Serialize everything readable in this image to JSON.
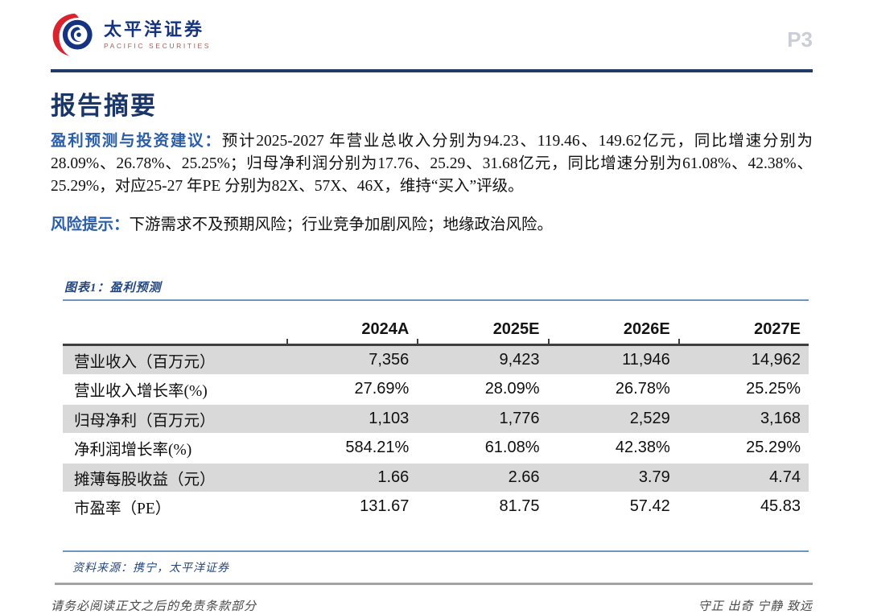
{
  "header": {
    "brand_cn": "太平洋证券",
    "brand_en": "PACIFIC SECURITIES",
    "page_number": "P3"
  },
  "title": "报告摘要",
  "summary": {
    "lead": "盈利预测与投资建议：",
    "body": "预计2025-2027 年营业总收入分别为94.23、119.46、149.62亿元，同比增速分别为28.09%、26.78%、25.25%；归母净利润分别为17.76、25.29、31.68亿元，同比增速分别为61.08%、42.38%、25.29%，对应25-27 年PE 分别为82X、57X、46X，维持“买入”评级。"
  },
  "risk": {
    "lead": "风险提示：",
    "body": "下游需求不及预期风险；行业竞争加剧风险；地缘政治风险。"
  },
  "figure": {
    "caption": "图表1：盈利预测",
    "source": "资料来源：携宁，太平洋证券"
  },
  "chart_data": {
    "type": "table",
    "title": "盈利预测",
    "columns": [
      "",
      "2024A",
      "2025E",
      "2026E",
      "2027E"
    ],
    "rows": [
      {
        "label": "营业收入（百万元）",
        "values": [
          "7,356",
          "9,423",
          "11,946",
          "14,962"
        ]
      },
      {
        "label": "营业收入增长率(%)",
        "values": [
          "27.69%",
          "28.09%",
          "26.78%",
          "25.25%"
        ]
      },
      {
        "label": "归母净利（百万元）",
        "values": [
          "1,103",
          "1,776",
          "2,529",
          "3,168"
        ]
      },
      {
        "label": "净利润增长率(%)",
        "values": [
          "584.21%",
          "61.08%",
          "42.38%",
          "25.29%"
        ]
      },
      {
        "label": "摊薄每股收益（元）",
        "values": [
          "1.66",
          "2.66",
          "3.79",
          "4.74"
        ]
      },
      {
        "label": "市盈率（PE）",
        "values": [
          "131.67",
          "81.75",
          "57.42",
          "45.83"
        ]
      }
    ]
  },
  "footer": {
    "disclaimer": "请务必阅读正文之后的免责条款部分",
    "motto": "守正 出奇 宁静 致远"
  },
  "colors": {
    "navy_rule": "#1f3b66",
    "title_navy": "#1a3668",
    "lead_blue": "#2b5ea8",
    "figure_blue": "#24477e",
    "steel_blue_rule": "#6f94bd",
    "row_shade_gray": "#d9d9d9",
    "page_number_gray": "#c9ced8",
    "brand_navy": "#16337f",
    "brand_red": "#d9232e"
  }
}
